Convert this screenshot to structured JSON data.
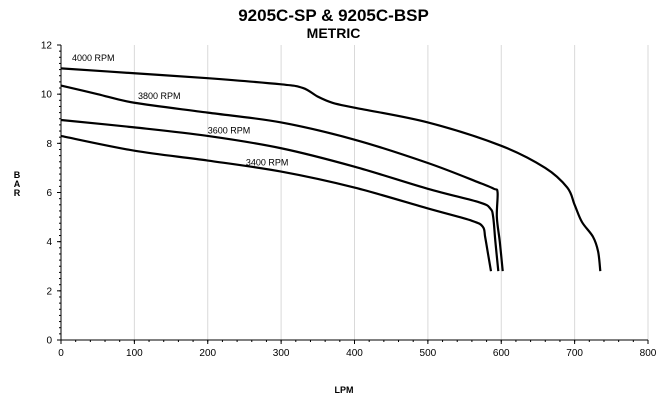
{
  "chart_data": {
    "type": "line",
    "title": "9205C-SP & 9205C-BSP",
    "subtitle": "METRIC",
    "xlabel": "LPM",
    "ylabel": "BAR",
    "xlim": [
      0,
      800
    ],
    "ylim": [
      0,
      12
    ],
    "x_ticks": [
      "0",
      "100",
      "200",
      "300",
      "400",
      "500",
      "600",
      "700",
      "800"
    ],
    "y_ticks": [
      "0",
      "2",
      "4",
      "6",
      "8",
      "10",
      "12"
    ],
    "grid": "vertical",
    "series": [
      {
        "name": "4000 RPM",
        "points": [
          [
            0,
            11.05
          ],
          [
            100,
            10.85
          ],
          [
            200,
            10.65
          ],
          [
            300,
            10.4
          ],
          [
            330,
            10.25
          ],
          [
            350,
            9.9
          ],
          [
            370,
            9.65
          ],
          [
            400,
            9.45
          ],
          [
            500,
            8.85
          ],
          [
            600,
            7.9
          ],
          [
            660,
            7.0
          ],
          [
            690,
            6.2
          ],
          [
            700,
            5.5
          ],
          [
            710,
            4.8
          ],
          [
            725,
            4.2
          ],
          [
            732,
            3.6
          ],
          [
            735,
            2.8
          ]
        ]
      },
      {
        "name": "3800 RPM",
        "points": [
          [
            0,
            10.35
          ],
          [
            50,
            10.0
          ],
          [
            100,
            9.65
          ],
          [
            200,
            9.25
          ],
          [
            300,
            8.85
          ],
          [
            400,
            8.15
          ],
          [
            500,
            7.2
          ],
          [
            570,
            6.4
          ],
          [
            590,
            6.15
          ],
          [
            595,
            6.0
          ],
          [
            594,
            5.0
          ],
          [
            598,
            4.0
          ],
          [
            602,
            2.8
          ]
        ]
      },
      {
        "name": "3600 RPM",
        "points": [
          [
            0,
            8.95
          ],
          [
            100,
            8.65
          ],
          [
            200,
            8.3
          ],
          [
            300,
            7.8
          ],
          [
            400,
            7.05
          ],
          [
            500,
            6.15
          ],
          [
            570,
            5.6
          ],
          [
            585,
            5.35
          ],
          [
            589,
            5.0
          ],
          [
            592,
            4.0
          ],
          [
            596,
            2.8
          ]
        ]
      },
      {
        "name": "3400 RPM",
        "points": [
          [
            0,
            8.3
          ],
          [
            100,
            7.7
          ],
          [
            200,
            7.3
          ],
          [
            300,
            6.85
          ],
          [
            400,
            6.2
          ],
          [
            500,
            5.35
          ],
          [
            560,
            4.85
          ],
          [
            575,
            4.6
          ],
          [
            578,
            4.2
          ],
          [
            582,
            3.5
          ],
          [
            586,
            2.8
          ]
        ]
      }
    ]
  }
}
